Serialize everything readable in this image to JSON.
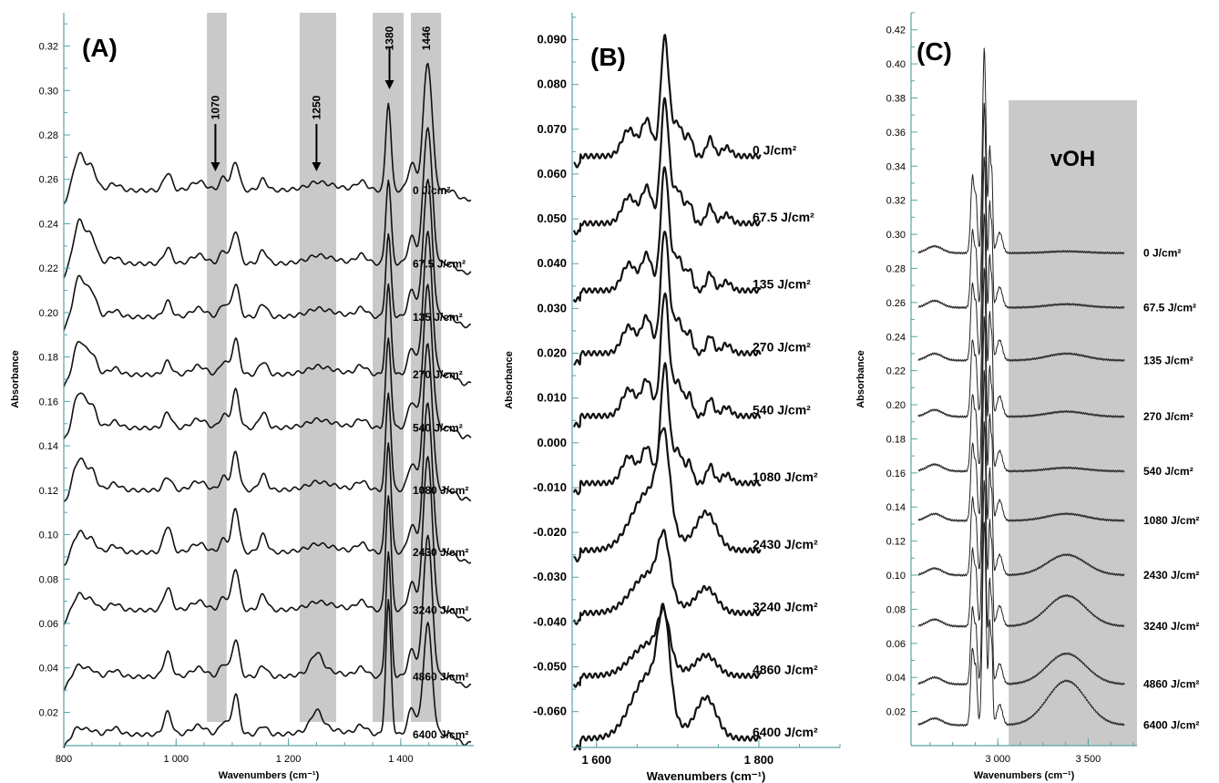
{
  "chart_data": [
    {
      "panel": "(A)",
      "type": "line",
      "xlabel": "Wavenumbers (cm⁻¹)",
      "ylabel": "Absorbance",
      "xlim": [
        800,
        1530
      ],
      "ylim": [
        0.005,
        0.335
      ],
      "x_ticks": [
        800,
        1000,
        1200,
        1400
      ],
      "x_tick_labels": [
        "800",
        "1 000",
        "1 200",
        "1 400"
      ],
      "y_ticks": [
        0.02,
        0.04,
        0.06,
        0.08,
        0.1,
        0.12,
        0.14,
        0.16,
        0.18,
        0.2,
        0.22,
        0.24,
        0.26,
        0.28,
        0.3,
        0.32
      ],
      "y_tick_labels": [
        "0.02",
        "0.04",
        "0.06",
        "0.08",
        "0.10",
        "0.12",
        "0.14",
        "0.16",
        "0.18",
        "0.20",
        "0.22",
        "0.24",
        "0.26",
        "0.28",
        "0.30",
        "0.32"
      ],
      "grid": false,
      "shaded_bands": [
        [
          1055,
          1090
        ],
        [
          1220,
          1285
        ],
        [
          1350,
          1405
        ],
        [
          1418,
          1472
        ]
      ],
      "band_annotations": [
        {
          "label": "1070",
          "x": 1070,
          "arrow": true
        },
        {
          "label": "1250",
          "x": 1250,
          "arrow": true
        },
        {
          "label": "1380",
          "x": 1380,
          "arrow": true
        },
        {
          "label": "1446",
          "x": 1446,
          "arrow": false
        }
      ],
      "series": [
        {
          "name": "0 J/cm²",
          "baseline": 0.255,
          "peaks": [
            [
              830,
              0.016
            ],
            [
              985,
              0.008
            ],
            [
              1108,
              0.013
            ],
            [
              1155,
              0.005
            ],
            [
              1380,
              0.04
            ],
            [
              1446,
              0.058
            ]
          ]
        },
        {
          "name": "67.5 J/cm²",
          "baseline": 0.222,
          "peaks": [
            [
              830,
              0.019
            ],
            [
              985,
              0.007
            ],
            [
              1108,
              0.015
            ],
            [
              1155,
              0.006
            ],
            [
              1380,
              0.038
            ],
            [
              1446,
              0.062
            ]
          ]
        },
        {
          "name": "135 J/cm²",
          "baseline": 0.198,
          "peaks": [
            [
              830,
              0.018
            ],
            [
              985,
              0.007
            ],
            [
              1108,
              0.015
            ],
            [
              1155,
              0.006
            ],
            [
              1380,
              0.037
            ],
            [
              1446,
              0.062
            ]
          ]
        },
        {
          "name": "270 J/cm²",
          "baseline": 0.172,
          "peaks": [
            [
              830,
              0.015
            ],
            [
              985,
              0.006
            ],
            [
              1108,
              0.016
            ],
            [
              1155,
              0.006
            ],
            [
              1380,
              0.04
            ],
            [
              1446,
              0.064
            ]
          ]
        },
        {
          "name": "540 J/cm²",
          "baseline": 0.148,
          "peaks": [
            [
              830,
              0.016
            ],
            [
              985,
              0.007
            ],
            [
              1108,
              0.017
            ],
            [
              1155,
              0.007
            ],
            [
              1380,
              0.04
            ],
            [
              1446,
              0.064
            ]
          ]
        },
        {
          "name": "1080 J/cm²",
          "baseline": 0.12,
          "peaks": [
            [
              830,
              0.014
            ],
            [
              985,
              0.006
            ],
            [
              1108,
              0.017
            ],
            [
              1155,
              0.007
            ],
            [
              1380,
              0.044
            ],
            [
              1446,
              0.066
            ]
          ]
        },
        {
          "name": "2430 J/cm²",
          "baseline": 0.092,
          "peaks": [
            [
              830,
              0.009
            ],
            [
              985,
              0.012
            ],
            [
              1108,
              0.02
            ],
            [
              1155,
              0.008
            ],
            [
              1380,
              0.05
            ],
            [
              1446,
              0.068
            ]
          ]
        },
        {
          "name": "3240 J/cm²",
          "baseline": 0.066,
          "peaks": [
            [
              830,
              0.007
            ],
            [
              985,
              0.01
            ],
            [
              1108,
              0.019
            ],
            [
              1155,
              0.007
            ],
            [
              1380,
              0.052
            ],
            [
              1446,
              0.07
            ]
          ]
        },
        {
          "name": "4860 J/cm²",
          "baseline": 0.036,
          "peaks": [
            [
              830,
              0.005
            ],
            [
              985,
              0.011
            ],
            [
              1108,
              0.017
            ],
            [
              1155,
              0.005
            ],
            [
              1380,
              0.056
            ],
            [
              1446,
              0.064
            ]
          ]
        },
        {
          "name": "6400 J/cm²",
          "baseline": 0.01,
          "peaks": [
            [
              830,
              0.003
            ],
            [
              985,
              0.01
            ],
            [
              1108,
              0.018
            ],
            [
              1155,
              0.004
            ],
            [
              1380,
              0.06
            ],
            [
              1446,
              0.05
            ]
          ]
        }
      ]
    },
    {
      "panel": "(B)",
      "type": "line",
      "xlabel": "Wavenumbers (cm⁻¹)",
      "ylabel": "Absorbance",
      "xlim": [
        1570,
        1900
      ],
      "ylim": [
        -0.068,
        0.096
      ],
      "x_ticks": [
        1600,
        1800
      ],
      "x_tick_labels": [
        "1 600",
        "1 800"
      ],
      "y_ticks": [
        -0.06,
        -0.05,
        -0.04,
        -0.03,
        -0.02,
        -0.01,
        0.0,
        0.01,
        0.02,
        0.03,
        0.04,
        0.05,
        0.06,
        0.07,
        0.08,
        0.09
      ],
      "y_tick_labels": [
        "-0.060",
        "-0.050",
        "-0.040",
        "-0.030",
        "-0.020",
        "-0.010",
        "0.000",
        "0.010",
        "0.020",
        "0.030",
        "0.040",
        "0.050",
        "0.060",
        "0.070",
        "0.080",
        "0.090"
      ],
      "grid": false,
      "series": [
        {
          "name": "0 J/cm²",
          "baseline": 0.064,
          "peak": 0.026
        },
        {
          "name": "67.5 J/cm²",
          "baseline": 0.049,
          "peak": 0.027
        },
        {
          "name": "135 J/cm²",
          "baseline": 0.034,
          "peak": 0.027
        },
        {
          "name": "270 J/cm²",
          "baseline": 0.02,
          "peak": 0.027
        },
        {
          "name": "540 J/cm²",
          "baseline": 0.006,
          "peak": 0.027
        },
        {
          "name": "1080 J/cm²",
          "baseline": -0.009,
          "peak": 0.026
        },
        {
          "name": "2430 J/cm²",
          "baseline": -0.024,
          "peak": 0.024
        },
        {
          "name": "3240 J/cm²",
          "baseline": -0.038,
          "peak": 0.016
        },
        {
          "name": "4860 J/cm²",
          "baseline": -0.052,
          "peak": 0.013
        },
        {
          "name": "6400 J/cm²",
          "baseline": -0.066,
          "peak": 0.026
        }
      ]
    },
    {
      "panel": "(C)",
      "type": "line",
      "xlabel": "Wavenumbers (cm⁻¹)",
      "ylabel": "Absorbance",
      "xlim": [
        2520,
        3770
      ],
      "ylim": [
        0.0,
        0.43
      ],
      "x_ticks": [
        3000,
        3500
      ],
      "x_tick_labels": [
        "3 000",
        "3 500"
      ],
      "y_ticks": [
        0.02,
        0.04,
        0.06,
        0.08,
        0.1,
        0.12,
        0.14,
        0.16,
        0.18,
        0.2,
        0.22,
        0.24,
        0.26,
        0.28,
        0.3,
        0.32,
        0.34,
        0.36,
        0.38,
        0.4,
        0.42
      ],
      "y_tick_labels": [
        "0.02",
        "0.04",
        "0.06",
        "0.08",
        "0.10",
        "0.12",
        "0.14",
        "0.16",
        "0.18",
        "0.20",
        "0.22",
        "0.24",
        "0.26",
        "0.28",
        "0.30",
        "0.32",
        "0.34",
        "0.36",
        "0.38",
        "0.40",
        "0.42"
      ],
      "grid": false,
      "region": {
        "label": "vOH",
        "x": [
          3060,
          3770
        ]
      },
      "series": [
        {
          "name": "0 J/cm²",
          "baseline": 0.289,
          "oh": 0.001
        },
        {
          "name": "67.5 J/cm²",
          "baseline": 0.257,
          "oh": 0.002
        },
        {
          "name": "135 J/cm²",
          "baseline": 0.226,
          "oh": 0.004
        },
        {
          "name": "270 J/cm²",
          "baseline": 0.193,
          "oh": 0.003
        },
        {
          "name": "540 J/cm²",
          "baseline": 0.161,
          "oh": 0.002
        },
        {
          "name": "1080 J/cm²",
          "baseline": 0.132,
          "oh": 0.004
        },
        {
          "name": "2430 J/cm²",
          "baseline": 0.1,
          "oh": 0.012
        },
        {
          "name": "3240 J/cm²",
          "baseline": 0.07,
          "oh": 0.018
        },
        {
          "name": "4860 J/cm²",
          "baseline": 0.036,
          "oh": 0.018
        },
        {
          "name": "6400 J/cm²",
          "baseline": 0.012,
          "oh": 0.026
        }
      ]
    }
  ]
}
